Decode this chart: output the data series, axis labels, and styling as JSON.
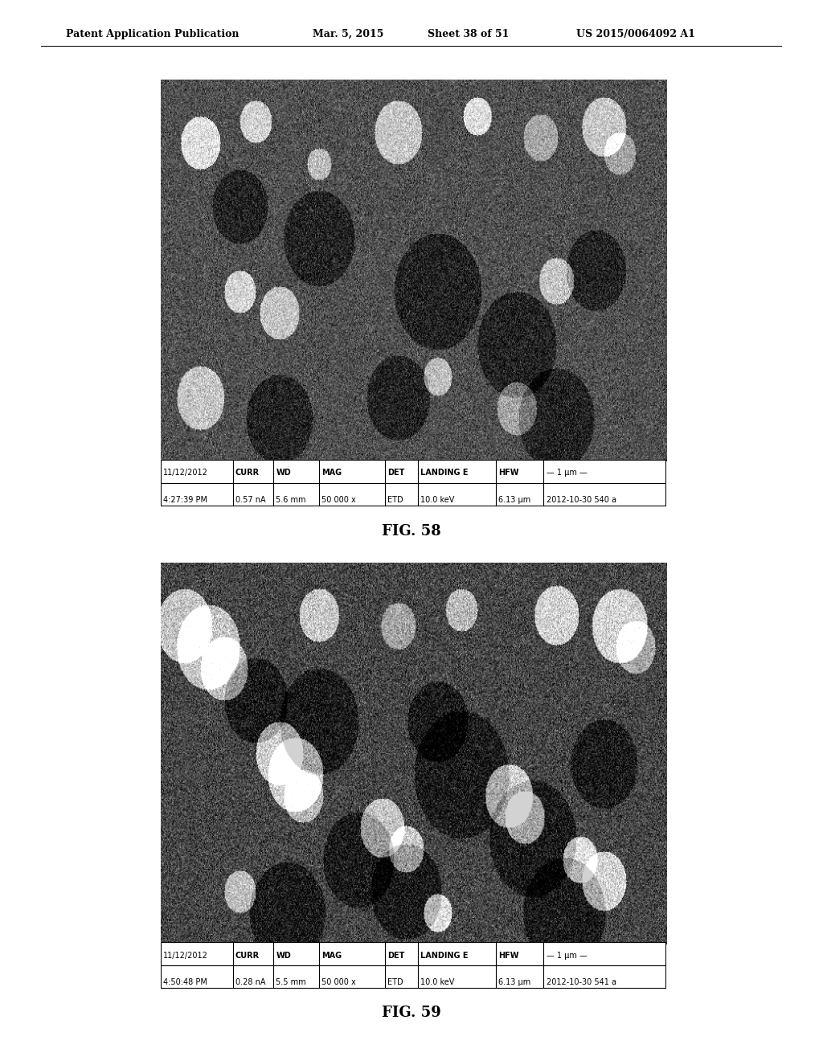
{
  "page_background": "#ffffff",
  "header_text": "Patent Application Publication",
  "header_date": "Mar. 5, 2015",
  "header_sheet": "Sheet 38 of 51",
  "header_patent": "US 2015/0064092 A1",
  "fig58_caption": "FIG. 58",
  "fig59_caption": "FIG. 59",
  "metadata_58": {
    "date": "11/12/2012",
    "time": "4:27:39 PM",
    "curr": "0.57 nA",
    "wd": "5.6 mm",
    "mag": "50 000 x",
    "det": "ETD",
    "landing_e": "10.0 keV",
    "hfw": "6.13 μm",
    "scale": "1 μm",
    "id": "2012-10-30 540 a"
  },
  "metadata_59": {
    "date": "11/12/2012",
    "time": "4:50:48 PM",
    "curr": "0.28 nA",
    "wd": "5.5 mm",
    "mag": "50 000 x",
    "det": "ETD",
    "landing_e": "10.0 keV",
    "hfw": "6.13 μm",
    "scale": "1 μm",
    "id": "2012-10-30 541 a"
  },
  "image_border_color": "#000000",
  "metadata_bg": "#ffffff",
  "metadata_text_color": "#000000"
}
